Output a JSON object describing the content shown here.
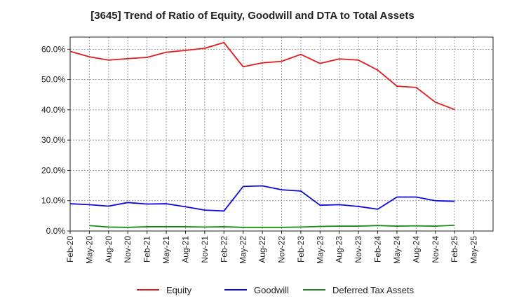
{
  "chart_data": {
    "type": "line",
    "title": "[3645]  Trend of Ratio of Equity, Goodwill and DTA to Total Assets",
    "xlabel": "",
    "ylabel": "",
    "ylim": [
      0,
      64
    ],
    "yticks": [
      0,
      10,
      20,
      30,
      40,
      50,
      60
    ],
    "ytick_labels": [
      "0.0%",
      "10.0%",
      "20.0%",
      "30.0%",
      "40.0%",
      "50.0%",
      "60.0%"
    ],
    "grid": true,
    "legend_position": "bottom",
    "x": [
      "Feb-20",
      "May-20",
      "Aug-20",
      "Nov-20",
      "Feb-21",
      "May-21",
      "Aug-21",
      "Nov-21",
      "Feb-22",
      "May-22",
      "Aug-22",
      "Nov-22",
      "Feb-23",
      "May-23",
      "Aug-23",
      "Nov-23",
      "Feb-24",
      "May-24",
      "Aug-24",
      "Nov-24",
      "Feb-25",
      "May-25"
    ],
    "series": [
      {
        "name": "Equity",
        "color": "#e31a1c",
        "values": [
          59.3,
          57.5,
          56.4,
          56.9,
          57.3,
          59.0,
          59.6,
          60.3,
          62.2,
          54.2,
          55.5,
          56.0,
          58.3,
          55.3,
          56.8,
          56.4,
          53.1,
          47.8,
          47.4,
          42.5,
          40.1,
          null
        ]
      },
      {
        "name": "Goodwill",
        "color": "#0a0adf",
        "values": [
          9.0,
          8.7,
          8.2,
          9.4,
          8.9,
          9.0,
          8.0,
          6.9,
          6.6,
          14.7,
          14.9,
          13.6,
          13.2,
          8.5,
          8.7,
          8.1,
          7.2,
          11.2,
          11.2,
          10.0,
          9.8,
          null
        ]
      },
      {
        "name": "Deferred Tax Assets",
        "color": "#1a8a1a",
        "values": [
          null,
          1.8,
          1.3,
          1.2,
          1.4,
          1.4,
          1.4,
          1.3,
          1.4,
          1.2,
          1.2,
          1.2,
          1.3,
          1.5,
          1.6,
          1.6,
          1.8,
          1.6,
          1.7,
          1.6,
          1.9,
          null
        ]
      }
    ]
  }
}
